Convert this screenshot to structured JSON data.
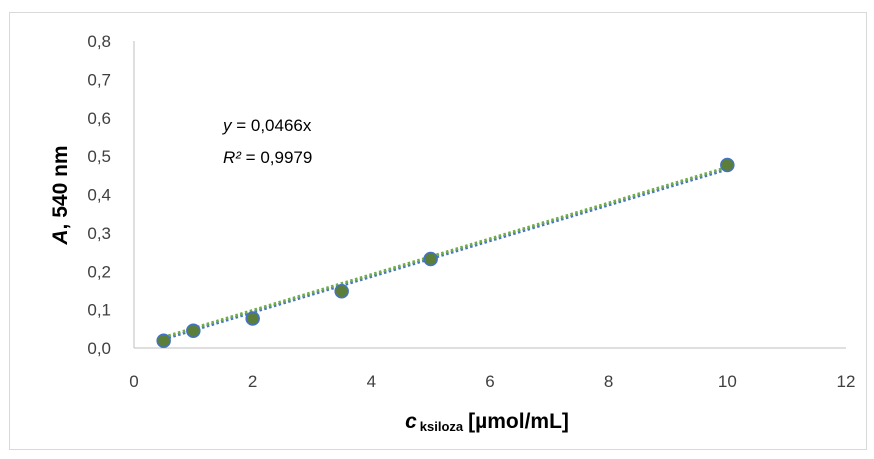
{
  "chart_data": {
    "type": "scatter",
    "xlim": [
      0,
      12
    ],
    "ylim": [
      0,
      0.8
    ],
    "x_ticks": [
      {
        "value": 0,
        "label": "0"
      },
      {
        "value": 2,
        "label": "2"
      },
      {
        "value": 4,
        "label": "4"
      },
      {
        "value": 6,
        "label": "6"
      },
      {
        "value": 8,
        "label": "8"
      },
      {
        "value": 10,
        "label": "10"
      },
      {
        "value": 12,
        "label": "12"
      }
    ],
    "y_ticks": [
      {
        "value": 0.0,
        "label": "0,0"
      },
      {
        "value": 0.1,
        "label": "0,1"
      },
      {
        "value": 0.2,
        "label": "0,2"
      },
      {
        "value": 0.3,
        "label": "0,3"
      },
      {
        "value": 0.4,
        "label": "0,4"
      },
      {
        "value": 0.5,
        "label": "0,5"
      },
      {
        "value": 0.6,
        "label": "0,6"
      },
      {
        "value": 0.7,
        "label": "0,7"
      },
      {
        "value": 0.8,
        "label": "0,8"
      }
    ],
    "xlabel": {
      "var": "c",
      "sub": "ksiloza",
      "unit": "[µmol/mL]"
    },
    "ylabel": {
      "var": "A",
      "rest": ", 540 nm"
    },
    "grid": false,
    "points": [
      {
        "x": 0.5,
        "y": 0.019
      },
      {
        "x": 1,
        "y": 0.045
      },
      {
        "x": 2,
        "y": 0.077
      },
      {
        "x": 3.5,
        "y": 0.148
      },
      {
        "x": 5,
        "y": 0.232
      },
      {
        "x": 10,
        "y": 0.477
      }
    ],
    "trendlines": [
      {
        "x": [
          0.5,
          10
        ],
        "y": [
          0.0233,
          0.466
        ],
        "color": "#4472c4",
        "style": "dotted"
      },
      {
        "x": [
          0.5,
          10
        ],
        "y": [
          0.028,
          0.471
        ],
        "color": "#70ad47",
        "style": "dotted"
      }
    ],
    "annotation": {
      "eq_var": "y",
      "eq_rest": " = 0,0466x",
      "r2_var": "R²",
      "r2_rest": " = 0,9979"
    },
    "marker_fill": "#5b7f3a",
    "marker_stroke": "#4472c4",
    "axis_color": "#bfbfbf"
  }
}
